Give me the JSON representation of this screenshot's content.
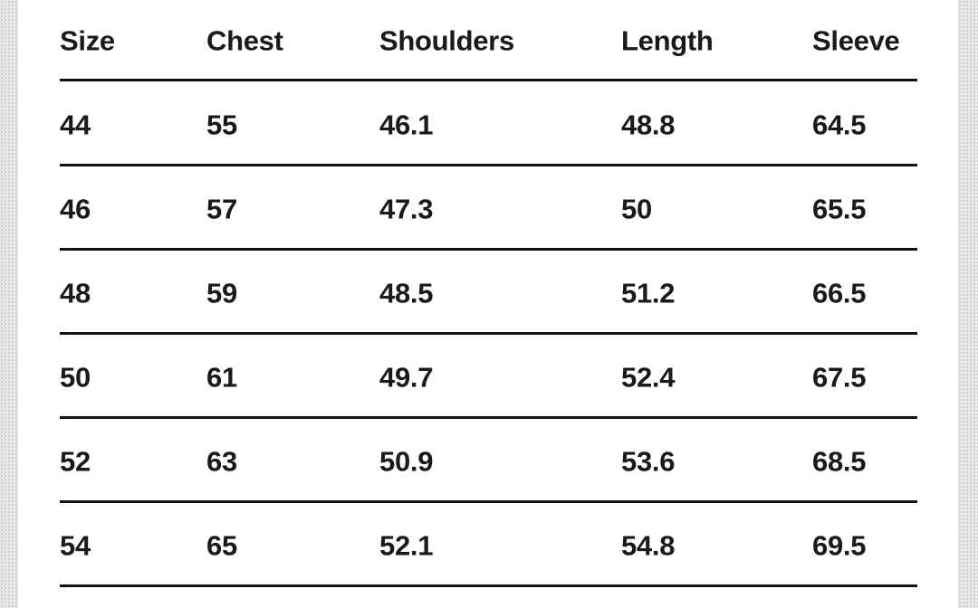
{
  "table": {
    "header": [
      "Size",
      "Chest",
      "Shoulders",
      "Length",
      "Sleeve"
    ],
    "rows": [
      [
        "44",
        "55",
        "46.1",
        "48.8",
        "64.5"
      ],
      [
        "46",
        "57",
        "47.3",
        "50",
        "65.5"
      ],
      [
        "48",
        "59",
        "48.5",
        "51.2",
        "66.5"
      ],
      [
        "50",
        "61",
        "49.7",
        "52.4",
        "67.5"
      ],
      [
        "52",
        "63",
        "50.9",
        "53.6",
        "68.5"
      ],
      [
        "54",
        "65",
        "52.1",
        "54.8",
        "69.5"
      ]
    ]
  }
}
